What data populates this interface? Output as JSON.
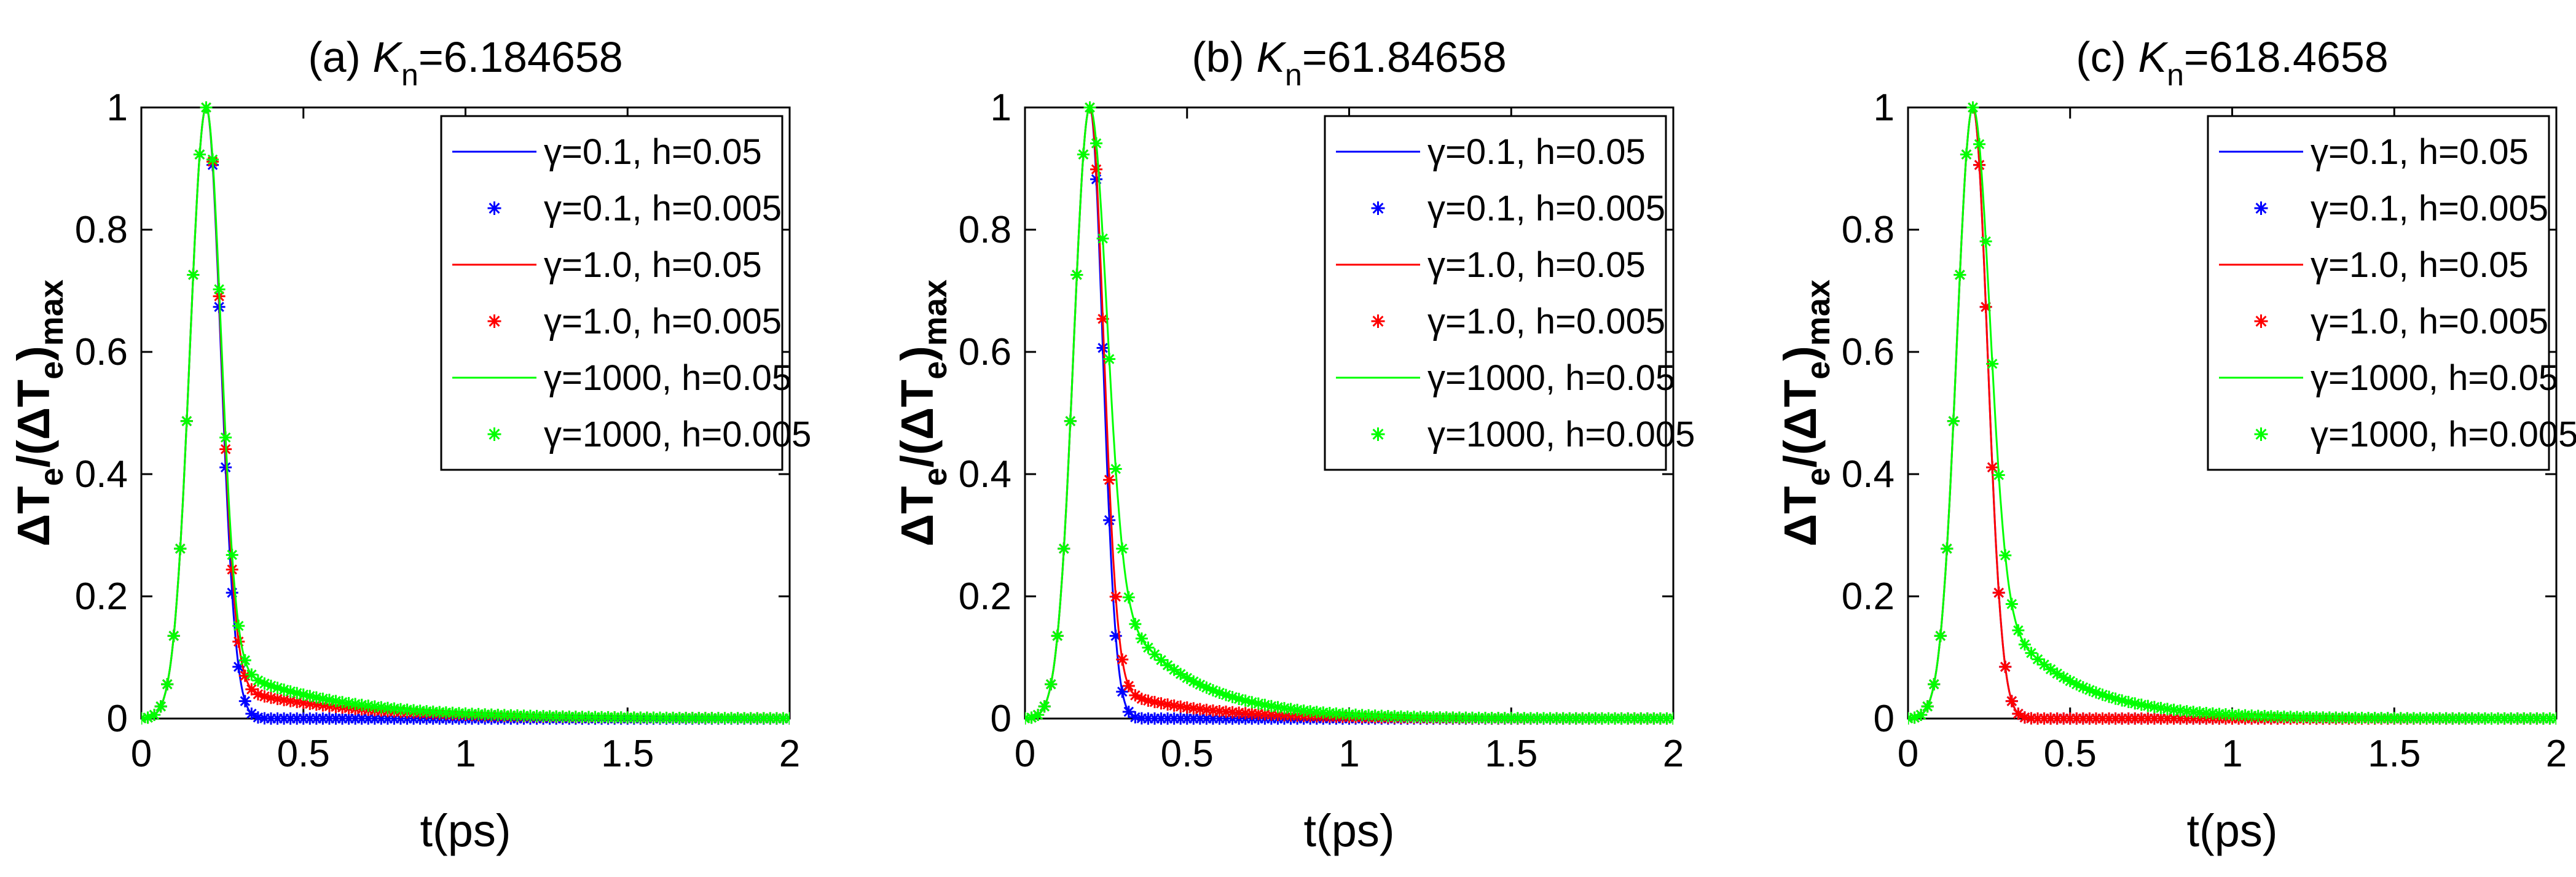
{
  "chart_data": [
    {
      "type": "line",
      "panel_label": "(a)",
      "title_symbol": "K",
      "title_subscript": "n",
      "title_value": "=6.184658",
      "xlabel": "t(ps)",
      "ylabel": {
        "delta": "Δ",
        "main": "T",
        "sub": "e",
        "mid": "/(Δ",
        "main2": "T",
        "sub2": "e",
        "close": ")",
        "sub3": "max"
      },
      "xlim": [
        0,
        2
      ],
      "ylim": [
        0,
        1
      ],
      "xticks": [
        "0",
        "0.5",
        "1",
        "1.5",
        "2"
      ],
      "yticks": [
        "0",
        "0.2",
        "0.4",
        "0.6",
        "0.8",
        "1"
      ],
      "legend_location": "top-right",
      "peak": 0.2,
      "series": [
        {
          "name": "γ=0.1, h=0.05",
          "style": "line",
          "color": "#0000ff",
          "rise_width": 0.05,
          "tail_amp": 0.0,
          "tail_tau": 0.2,
          "fall_width": 0.045
        },
        {
          "name": "γ=0.1, h=0.005",
          "style": "marker",
          "color": "#0000ff",
          "rise_width": 0.05,
          "tail_amp": 0.0,
          "tail_tau": 0.2,
          "fall_width": 0.045
        },
        {
          "name": "γ=1.0, h=0.05",
          "style": "line",
          "color": "#ff0000",
          "rise_width": 0.05,
          "tail_amp": 0.06,
          "tail_tau": 0.35,
          "fall_width": 0.045
        },
        {
          "name": "γ=1.0, h=0.005",
          "style": "marker",
          "color": "#ff0000",
          "rise_width": 0.05,
          "tail_amp": 0.06,
          "tail_tau": 0.35,
          "fall_width": 0.045
        },
        {
          "name": "γ=1000, h=0.05",
          "style": "line",
          "color": "#00ff00",
          "rise_width": 0.05,
          "tail_amp": 0.1,
          "tail_tau": 0.32,
          "fall_width": 0.045
        },
        {
          "name": "γ=1000, h=0.005",
          "style": "marker",
          "color": "#00ff00",
          "rise_width": 0.05,
          "tail_amp": 0.1,
          "tail_tau": 0.32,
          "fall_width": 0.045
        }
      ]
    },
    {
      "type": "line",
      "panel_label": "(b)",
      "title_symbol": "K",
      "title_subscript": "n",
      "title_value": "=61.84658",
      "xlabel": "t(ps)",
      "ylabel": {
        "delta": "Δ",
        "main": "T",
        "sub": "e",
        "mid": "/(Δ",
        "main2": "T",
        "sub2": "e",
        "close": ")",
        "sub3": "max"
      },
      "xlim": [
        0,
        2
      ],
      "ylim": [
        0,
        1
      ],
      "xticks": [
        "0",
        "0.5",
        "1",
        "1.5",
        "2"
      ],
      "yticks": [
        "0",
        "0.2",
        "0.4",
        "0.6",
        "0.8",
        "1"
      ],
      "legend_location": "top-right",
      "peak": 0.2,
      "series": [
        {
          "name": "γ=0.1, h=0.05",
          "style": "line",
          "color": "#0000ff",
          "rise_width": 0.05,
          "tail_amp": 0.0,
          "tail_tau": 0.2,
          "fall_width": 0.04
        },
        {
          "name": "γ=0.1, h=0.005",
          "style": "marker",
          "color": "#0000ff",
          "rise_width": 0.05,
          "tail_amp": 0.0,
          "tail_tau": 0.2,
          "fall_width": 0.04
        },
        {
          "name": "γ=1.0, h=0.05",
          "style": "line",
          "color": "#ff0000",
          "rise_width": 0.05,
          "tail_amp": 0.06,
          "tail_tau": 0.25,
          "fall_width": 0.042
        },
        {
          "name": "γ=1.0, h=0.005",
          "style": "marker",
          "color": "#ff0000",
          "rise_width": 0.05,
          "tail_amp": 0.06,
          "tail_tau": 0.25,
          "fall_width": 0.042
        },
        {
          "name": "γ=1000, h=0.05",
          "style": "line",
          "color": "#00ff00",
          "rise_width": 0.05,
          "tail_amp": 0.26,
          "tail_tau": 0.22,
          "fall_width": 0.05
        },
        {
          "name": "γ=1000, h=0.005",
          "style": "marker",
          "color": "#00ff00",
          "rise_width": 0.05,
          "tail_amp": 0.26,
          "tail_tau": 0.22,
          "fall_width": 0.05
        }
      ]
    },
    {
      "type": "line",
      "panel_label": "(c)",
      "title_symbol": "K",
      "title_subscript": "n",
      "title_value": "=618.4658",
      "xlabel": "t(ps)",
      "ylabel": {
        "delta": "Δ",
        "main": "T",
        "sub": "e",
        "mid": "/(Δ",
        "main2": "T",
        "sub2": "e",
        "close": ")",
        "sub3": "max"
      },
      "xlim": [
        0,
        2
      ],
      "ylim": [
        0,
        1
      ],
      "xticks": [
        "0",
        "0.5",
        "1",
        "1.5",
        "2"
      ],
      "yticks": [
        "0",
        "0.2",
        "0.4",
        "0.6",
        "0.8",
        "1"
      ],
      "legend_location": "top-right",
      "peak": 0.2,
      "series": [
        {
          "name": "γ=0.1, h=0.05",
          "style": "line",
          "color": "#0000ff",
          "rise_width": 0.05,
          "tail_amp": 0.0,
          "tail_tau": 0.2,
          "fall_width": 0.045
        },
        {
          "name": "γ=0.1, h=0.005",
          "style": "marker",
          "color": "#0000ff",
          "rise_width": 0.05,
          "tail_amp": 0.0,
          "tail_tau": 0.2,
          "fall_width": 0.045
        },
        {
          "name": "γ=1.0, h=0.05",
          "style": "line",
          "color": "#ff0000",
          "rise_width": 0.05,
          "tail_amp": 0.0,
          "tail_tau": 0.2,
          "fall_width": 0.045
        },
        {
          "name": "γ=1.0, h=0.005",
          "style": "marker",
          "color": "#ff0000",
          "rise_width": 0.05,
          "tail_amp": 0.0,
          "tail_tau": 0.2,
          "fall_width": 0.045
        },
        {
          "name": "γ=1000, h=0.05",
          "style": "line",
          "color": "#00ff00",
          "rise_width": 0.05,
          "tail_amp": 0.24,
          "tail_tau": 0.22,
          "fall_width": 0.05
        },
        {
          "name": "γ=1000, h=0.005",
          "style": "marker",
          "color": "#00ff00",
          "rise_width": 0.05,
          "tail_amp": 0.24,
          "tail_tau": 0.22,
          "fall_width": 0.05
        }
      ]
    }
  ]
}
